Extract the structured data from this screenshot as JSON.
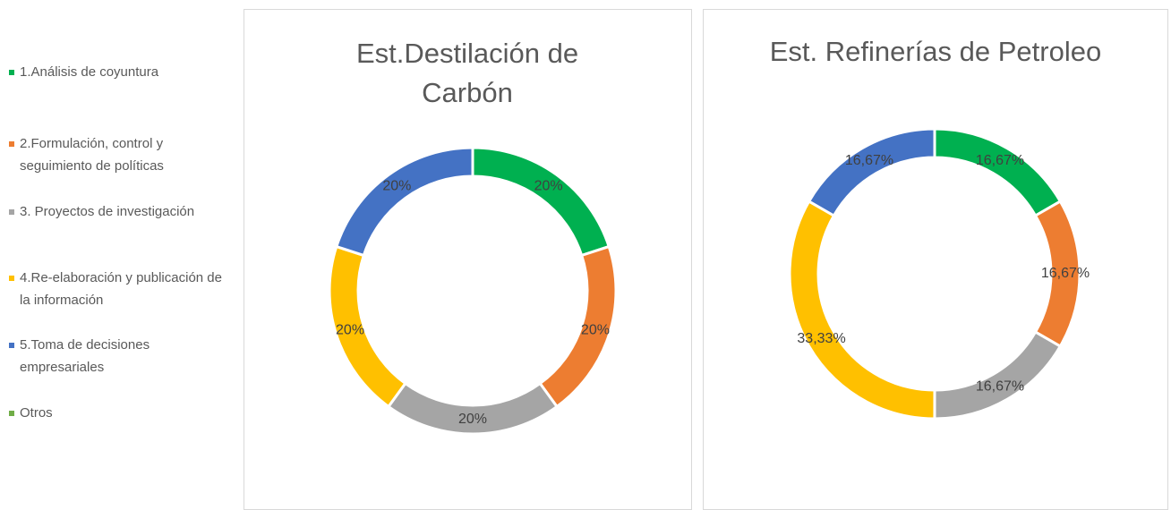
{
  "legend": [
    {
      "name": "1.Análisis de coyuntura",
      "color": "#00b050"
    },
    {
      "name": "2.Formulación, control y seguimiento de políticas",
      "color": "#ed7d31"
    },
    {
      "name": "3. Proyectos de investigación",
      "color": "#a5a5a5"
    },
    {
      "name": "4.Re-elaboración y publicación de la información",
      "color": "#ffc000"
    },
    {
      "name": "5.Toma de decisiones empresariales",
      "color": "#4472c4"
    },
    {
      "name": "Otros",
      "color": "#70ad47"
    }
  ],
  "chart_data": [
    {
      "type": "donut",
      "title": "Est.Destilación de Carbón",
      "values": [
        20,
        20,
        20,
        20,
        20
      ],
      "value_labels": [
        "20%",
        "20%",
        "20%",
        "20%",
        "20%"
      ],
      "colors": [
        "#00b050",
        "#ed7d31",
        "#a5a5a5",
        "#ffc000",
        "#4472c4"
      ]
    },
    {
      "type": "donut",
      "title": "Est. Refinerías de Petroleo",
      "values": [
        16.67,
        16.67,
        16.67,
        33.33,
        16.67
      ],
      "value_labels": [
        "16,67%",
        "16,67%",
        "16,67%",
        "33,33%",
        "16,67%"
      ],
      "colors": [
        "#00b050",
        "#ed7d31",
        "#a5a5a5",
        "#ffc000",
        "#4472c4"
      ]
    }
  ]
}
